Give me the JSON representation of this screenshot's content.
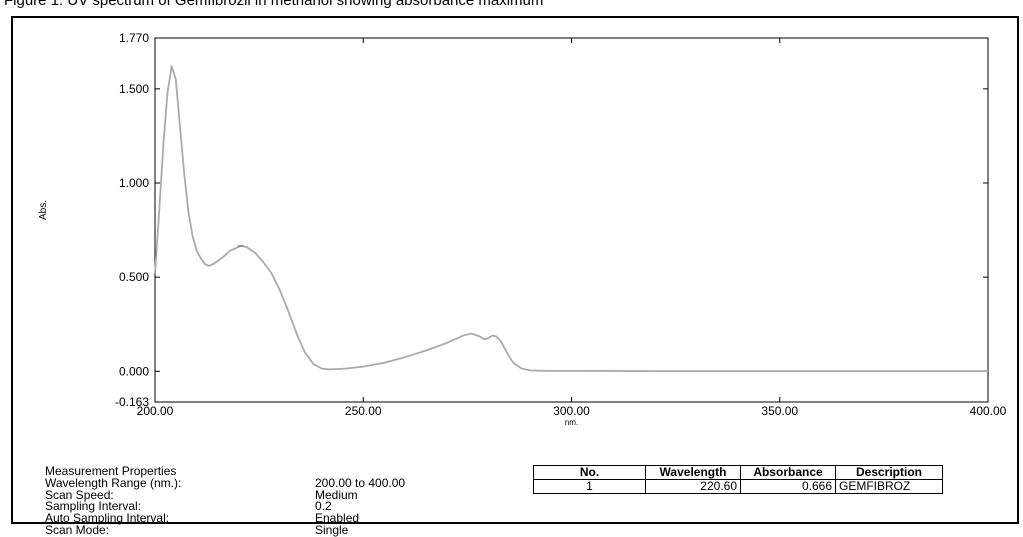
{
  "header_fragment": "Figure 1: UV spectrum of Gemfibrozil in methanol showing absorbance maximum",
  "chart_data": {
    "type": "line",
    "xlabel": "nm.",
    "ylabel": "Abs.",
    "xlim": [
      200.0,
      400.0
    ],
    "ylim": [
      -0.163,
      1.77
    ],
    "x_ticks": [
      "200.00",
      "250.00",
      "300.00",
      "350.00",
      "400.00"
    ],
    "y_ticks": [
      "1.770",
      "1.500",
      "1.000",
      "0.500",
      "0.000",
      "-0.163"
    ],
    "x_tick_values": [
      200,
      250,
      300,
      350,
      400
    ],
    "y_tick_values": [
      1.77,
      1.5,
      1.0,
      0.5,
      0.0,
      -0.163
    ],
    "grid": false,
    "color": "#aaaaaa",
    "series": [
      {
        "x": [
          200,
          201,
          202,
          203,
          204,
          205,
          206,
          207,
          208,
          209,
          210,
          211,
          212,
          213,
          214,
          216,
          218,
          220,
          220.6,
          222,
          224,
          226,
          228,
          230,
          232,
          234,
          236,
          238,
          240,
          242,
          244,
          246,
          250,
          255,
          260,
          265,
          270,
          272,
          274,
          276,
          278,
          279,
          280,
          281,
          282,
          283,
          284,
          285,
          286,
          288,
          290,
          292,
          295,
          300,
          320,
          340,
          360,
          380,
          400
        ],
        "y": [
          0.52,
          0.85,
          1.2,
          1.48,
          1.62,
          1.55,
          1.3,
          1.05,
          0.85,
          0.72,
          0.64,
          0.6,
          0.57,
          0.56,
          0.57,
          0.6,
          0.64,
          0.66,
          0.666,
          0.66,
          0.63,
          0.58,
          0.52,
          0.43,
          0.32,
          0.2,
          0.1,
          0.04,
          0.015,
          0.01,
          0.012,
          0.015,
          0.025,
          0.045,
          0.075,
          0.11,
          0.15,
          0.17,
          0.19,
          0.2,
          0.185,
          0.17,
          0.175,
          0.19,
          0.185,
          0.16,
          0.12,
          0.08,
          0.045,
          0.015,
          0.005,
          0.003,
          0.002,
          0.002,
          0.001,
          0.001,
          0.001,
          0.001,
          0.001
        ]
      }
    ]
  },
  "properties": {
    "title": "Measurement Properties",
    "rows": [
      {
        "label": "Wavelength Range (nm.):",
        "value": "200.00 to 400.00"
      },
      {
        "label": "Scan Speed:",
        "value": "Medium"
      },
      {
        "label": "Sampling Interval:",
        "value": "0.2"
      },
      {
        "label": "Auto Sampling Interval:",
        "value": "Enabled"
      },
      {
        "label": "Scan Mode:",
        "value": "Single"
      }
    ]
  },
  "peak_table": {
    "headers": [
      "No.",
      "Wavelength",
      "Absorbance",
      "Description"
    ],
    "rows": [
      {
        "no": "1",
        "wavelength": "220.60",
        "absorbance": "0.666",
        "description": "GEMFIBROZ"
      }
    ]
  }
}
